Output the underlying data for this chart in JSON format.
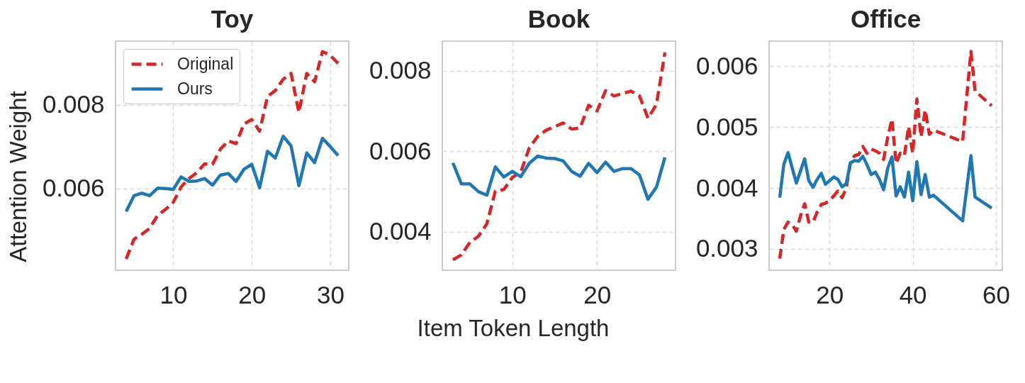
{
  "chart_data": [
    {
      "type": "line",
      "title": "Toy",
      "ylabel": "Attention Weight",
      "legend": "top left",
      "grid": true,
      "x": [
        4,
        5,
        6,
        7,
        8,
        9,
        10,
        11,
        12,
        13,
        14,
        15,
        16,
        17,
        18,
        19,
        20,
        21,
        22,
        23,
        24,
        25,
        26,
        27,
        28,
        29,
        30,
        31
      ],
      "xlim": [
        2.65,
        32.35
      ],
      "xticks": [
        10,
        20,
        30
      ],
      "ylim": [
        0.00405,
        0.00952
      ],
      "yticks": [
        0.006,
        0.008
      ],
      "series": [
        {
          "name": "Original",
          "color": "#d62728",
          "line_style": "dashed",
          "values": [
            0.00432,
            0.00479,
            0.00491,
            0.00505,
            0.00536,
            0.0055,
            0.00567,
            0.00604,
            0.00624,
            0.00638,
            0.00659,
            0.00658,
            0.00694,
            0.00714,
            0.00707,
            0.00754,
            0.00765,
            0.00737,
            0.0082,
            0.00834,
            0.00861,
            0.00875,
            0.00782,
            0.00875,
            0.00855,
            0.00927,
            0.00918,
            0.00899
          ]
        },
        {
          "name": "Ours",
          "color": "#1f77b4",
          "line_style": "solid",
          "values": [
            0.00545,
            0.00583,
            0.00589,
            0.00583,
            0.00601,
            0.006,
            0.00598,
            0.00628,
            0.00617,
            0.00618,
            0.00624,
            0.00608,
            0.00632,
            0.00636,
            0.00617,
            0.00646,
            0.00658,
            0.00602,
            0.00689,
            0.00673,
            0.00725,
            0.00702,
            0.00607,
            0.00685,
            0.00662,
            0.0072,
            0.007,
            0.00679
          ]
        }
      ]
    },
    {
      "type": "line",
      "title": "Book",
      "xlabel": "Item Token Length",
      "grid": true,
      "x": [
        3,
        4,
        5,
        6,
        7,
        8,
        9,
        10,
        11,
        12,
        13,
        14,
        15,
        16,
        17,
        18,
        19,
        20,
        21,
        22,
        23,
        24,
        25,
        26,
        27,
        28
      ],
      "xlim": [
        1.75,
        29.25
      ],
      "xticks": [
        10,
        20
      ],
      "ylim": [
        0.00305,
        0.00873
      ],
      "yticks": [
        0.004,
        0.006,
        0.008
      ],
      "series": [
        {
          "color": "#d62728",
          "line_style": "dashed",
          "values": [
            0.00331,
            0.00343,
            0.00374,
            0.00389,
            0.0042,
            0.00501,
            0.00505,
            0.00535,
            0.00548,
            0.00608,
            0.00637,
            0.00652,
            0.00661,
            0.0067,
            0.00655,
            0.00658,
            0.00714,
            0.007,
            0.0075,
            0.00737,
            0.00743,
            0.00749,
            0.00737,
            0.00682,
            0.00716,
            0.00845
          ]
        },
        {
          "color": "#1f77b4",
          "line_style": "solid",
          "values": [
            0.00571,
            0.00519,
            0.00519,
            0.005,
            0.00491,
            0.00561,
            0.00536,
            0.0055,
            0.00537,
            0.0057,
            0.00588,
            0.00583,
            0.00582,
            0.00576,
            0.0055,
            0.00538,
            0.0057,
            0.00547,
            0.00573,
            0.0055,
            0.00557,
            0.00557,
            0.00541,
            0.00481,
            0.00511,
            0.00585
          ]
        }
      ]
    },
    {
      "type": "line",
      "title": "Office",
      "grid": true,
      "x": [
        8,
        9,
        10,
        11,
        12,
        13,
        14,
        15,
        16,
        17,
        18,
        19,
        20,
        21,
        22,
        23,
        24,
        25,
        26,
        27,
        28,
        29,
        30,
        31,
        32,
        33,
        34,
        35,
        36,
        37,
        38,
        39,
        40,
        41,
        42,
        43,
        44,
        45,
        52,
        54,
        55,
        59
      ],
      "xlim": [
        5.45,
        61.55
      ],
      "xticks": [
        20,
        40,
        60
      ],
      "ylim": [
        0.00265,
        0.00641
      ],
      "yticks": [
        0.003,
        0.004,
        0.005,
        0.006
      ],
      "series": [
        {
          "color": "#d62728",
          "line_style": "dashed",
          "values": [
            0.00284,
            0.00332,
            0.00344,
            0.0034,
            0.00329,
            0.00354,
            0.00374,
            0.00344,
            0.00344,
            0.0036,
            0.00373,
            0.00375,
            0.00379,
            0.00387,
            0.00395,
            0.00384,
            0.004,
            0.00441,
            0.00453,
            0.00455,
            0.00468,
            0.00457,
            0.00464,
            0.00461,
            0.00457,
            0.00447,
            0.00484,
            0.00513,
            0.0044,
            0.00457,
            0.00453,
            0.00501,
            0.00457,
            0.00546,
            0.00484,
            0.00528,
            0.00488,
            0.00495,
            0.00476,
            0.00624,
            0.00559,
            0.00535
          ]
        },
        {
          "color": "#1f77b4",
          "line_style": "solid",
          "values": [
            0.00384,
            0.00439,
            0.00458,
            0.00433,
            0.00408,
            0.00428,
            0.00448,
            0.00412,
            0.00401,
            0.00414,
            0.00424,
            0.00406,
            0.00412,
            0.00418,
            0.00414,
            0.00402,
            0.00407,
            0.00441,
            0.00445,
            0.00444,
            0.00452,
            0.00438,
            0.00422,
            0.00426,
            0.00414,
            0.00397,
            0.00433,
            0.00451,
            0.00387,
            0.00402,
            0.00385,
            0.00426,
            0.00379,
            0.00443,
            0.00389,
            0.00422,
            0.00385,
            0.00388,
            0.00346,
            0.00453,
            0.00385,
            0.00367
          ]
        }
      ]
    }
  ]
}
